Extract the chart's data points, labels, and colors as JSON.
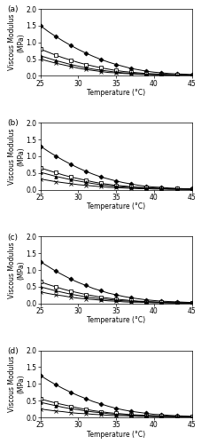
{
  "subplots": [
    "(a)",
    "(b)",
    "(c)",
    "(d)"
  ],
  "x": [
    25,
    26,
    27,
    28,
    29,
    30,
    31,
    32,
    33,
    34,
    35,
    36,
    37,
    38,
    39,
    40,
    41,
    42,
    43,
    44,
    45
  ],
  "series_a": {
    "control": [
      1.5,
      1.33,
      1.18,
      1.04,
      0.91,
      0.79,
      0.68,
      0.58,
      0.49,
      0.41,
      0.34,
      0.28,
      0.22,
      0.18,
      0.14,
      0.11,
      0.09,
      0.07,
      0.06,
      0.05,
      0.04
    ],
    "t1": [
      0.8,
      0.71,
      0.62,
      0.54,
      0.47,
      0.4,
      0.34,
      0.29,
      0.24,
      0.2,
      0.16,
      0.13,
      0.11,
      0.09,
      0.07,
      0.06,
      0.05,
      0.04,
      0.03,
      0.03,
      0.02
    ],
    "t2": [
      0.6,
      0.53,
      0.46,
      0.4,
      0.34,
      0.29,
      0.24,
      0.2,
      0.17,
      0.14,
      0.11,
      0.09,
      0.08,
      0.06,
      0.05,
      0.04,
      0.03,
      0.03,
      0.02,
      0.02,
      0.02
    ],
    "t3": [
      0.5,
      0.44,
      0.38,
      0.33,
      0.28,
      0.23,
      0.19,
      0.16,
      0.13,
      0.1,
      0.09,
      0.07,
      0.06,
      0.05,
      0.04,
      0.03,
      0.03,
      0.02,
      0.02,
      0.02,
      0.01
    ]
  },
  "series_b": {
    "control": [
      1.3,
      1.15,
      1.01,
      0.88,
      0.76,
      0.65,
      0.55,
      0.46,
      0.38,
      0.32,
      0.26,
      0.21,
      0.17,
      0.13,
      0.1,
      0.08,
      0.07,
      0.05,
      0.04,
      0.03,
      0.03
    ],
    "t1": [
      0.65,
      0.58,
      0.51,
      0.44,
      0.38,
      0.33,
      0.28,
      0.23,
      0.19,
      0.16,
      0.13,
      0.11,
      0.09,
      0.07,
      0.06,
      0.05,
      0.04,
      0.03,
      0.03,
      0.02,
      0.02
    ],
    "t2": [
      0.52,
      0.46,
      0.4,
      0.35,
      0.3,
      0.26,
      0.22,
      0.18,
      0.15,
      0.12,
      0.1,
      0.08,
      0.07,
      0.06,
      0.05,
      0.04,
      0.03,
      0.03,
      0.02,
      0.02,
      0.01
    ],
    "t3": [
      0.32,
      0.28,
      0.24,
      0.21,
      0.18,
      0.15,
      0.13,
      0.11,
      0.09,
      0.07,
      0.06,
      0.05,
      0.04,
      0.03,
      0.03,
      0.02,
      0.02,
      0.01,
      0.01,
      0.01,
      0.01
    ]
  },
  "series_c": {
    "control": [
      1.25,
      1.11,
      0.97,
      0.85,
      0.73,
      0.63,
      0.54,
      0.45,
      0.38,
      0.31,
      0.26,
      0.21,
      0.17,
      0.14,
      0.11,
      0.09,
      0.07,
      0.06,
      0.05,
      0.04,
      0.03
    ],
    "t1": [
      0.65,
      0.57,
      0.5,
      0.43,
      0.37,
      0.32,
      0.27,
      0.23,
      0.19,
      0.16,
      0.13,
      0.11,
      0.09,
      0.07,
      0.06,
      0.05,
      0.04,
      0.03,
      0.03,
      0.02,
      0.02
    ],
    "t2": [
      0.5,
      0.44,
      0.38,
      0.33,
      0.28,
      0.24,
      0.2,
      0.17,
      0.14,
      0.12,
      0.1,
      0.08,
      0.07,
      0.06,
      0.05,
      0.04,
      0.03,
      0.02,
      0.02,
      0.02,
      0.01
    ],
    "t3": [
      0.35,
      0.3,
      0.26,
      0.23,
      0.19,
      0.16,
      0.14,
      0.12,
      0.1,
      0.08,
      0.07,
      0.05,
      0.04,
      0.04,
      0.03,
      0.02,
      0.02,
      0.02,
      0.01,
      0.01,
      0.01
    ]
  },
  "series_d": {
    "control": [
      1.25,
      1.11,
      0.98,
      0.86,
      0.75,
      0.65,
      0.56,
      0.47,
      0.4,
      0.33,
      0.27,
      0.22,
      0.18,
      0.15,
      0.12,
      0.09,
      0.08,
      0.06,
      0.05,
      0.04,
      0.03
    ],
    "t1": [
      0.55,
      0.49,
      0.43,
      0.38,
      0.33,
      0.28,
      0.24,
      0.2,
      0.17,
      0.14,
      0.12,
      0.1,
      0.08,
      0.07,
      0.06,
      0.05,
      0.04,
      0.03,
      0.03,
      0.02,
      0.02
    ],
    "t2": [
      0.45,
      0.4,
      0.35,
      0.3,
      0.26,
      0.23,
      0.19,
      0.16,
      0.14,
      0.11,
      0.09,
      0.08,
      0.07,
      0.05,
      0.04,
      0.04,
      0.03,
      0.03,
      0.02,
      0.02,
      0.01
    ],
    "t3": [
      0.25,
      0.22,
      0.19,
      0.17,
      0.14,
      0.12,
      0.11,
      0.09,
      0.08,
      0.06,
      0.05,
      0.05,
      0.04,
      0.03,
      0.03,
      0.02,
      0.02,
      0.02,
      0.01,
      0.01,
      0.01
    ]
  },
  "markers": {
    "control": {
      "marker": "D",
      "markersize": 2.5,
      "fillstyle": "full"
    },
    "t1": {
      "marker": "s",
      "markersize": 2.5,
      "fillstyle": "none"
    },
    "t2": {
      "marker": "^",
      "markersize": 2.5,
      "fillstyle": "full"
    },
    "t3": {
      "marker": "x",
      "markersize": 2.5,
      "fillstyle": "full"
    }
  },
  "xlabel": "Temperature (°C)",
  "ylabel": "Viscous Modulus\n(MPa)",
  "xlim": [
    25,
    45
  ],
  "ylim": [
    0,
    2.0
  ],
  "yticks": [
    0.0,
    0.5,
    1.0,
    1.5,
    2.0
  ],
  "xticks": [
    25,
    30,
    35,
    40,
    45
  ],
  "marker_every": 2,
  "linewidth": 0.7,
  "fontsize_label": 5.5,
  "fontsize_tick": 5.5,
  "fontsize_panel": 6.5
}
